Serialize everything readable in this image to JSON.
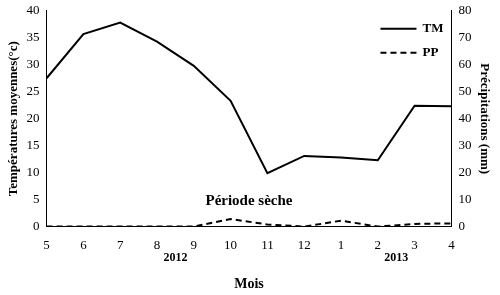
{
  "chart_data": {
    "type": "line",
    "x_label": "Mois",
    "y_label": "Températures moyennes(°c)",
    "y2_label": "Précipitations (mm)",
    "categories": [
      "5",
      "6",
      "7",
      "8",
      "9",
      "10",
      "11",
      "12",
      "1",
      "2",
      "3",
      "4"
    ],
    "category_groups": [
      {
        "label": "2012",
        "categories": [
          "5",
          "6",
          "7",
          "8",
          "9",
          "10",
          "11",
          "12"
        ]
      },
      {
        "label": "2013",
        "categories": [
          "1",
          "2",
          "3",
          "4"
        ]
      }
    ],
    "series": [
      {
        "name": "TM",
        "color": "#000000",
        "axis": "y",
        "line_style": "solid",
        "marker": "none",
        "values": [
          27.5,
          35.7,
          37.8,
          34.3,
          29.8,
          23.3,
          9.9,
          13.1,
          12.8,
          12.3,
          22.4,
          22.3
        ]
      },
      {
        "name": "PP",
        "color": "#000000",
        "axis": "y2",
        "line_style": "dashed",
        "marker": "none",
        "values": [
          0,
          0,
          0,
          0,
          0,
          2.8,
          0.8,
          0,
          2.2,
          0,
          1,
          1.2
        ]
      }
    ],
    "ylim": [
      0,
      40
    ],
    "yticks": [
      0,
      5,
      10,
      15,
      20,
      25,
      30,
      35,
      40
    ],
    "y2lim": [
      0,
      80
    ],
    "y2ticks": [
      0,
      10,
      20,
      30,
      40,
      50,
      60,
      70,
      80
    ],
    "grid": false,
    "legend": "top right",
    "annotations": [
      {
        "text": "Période sèche"
      }
    ]
  }
}
